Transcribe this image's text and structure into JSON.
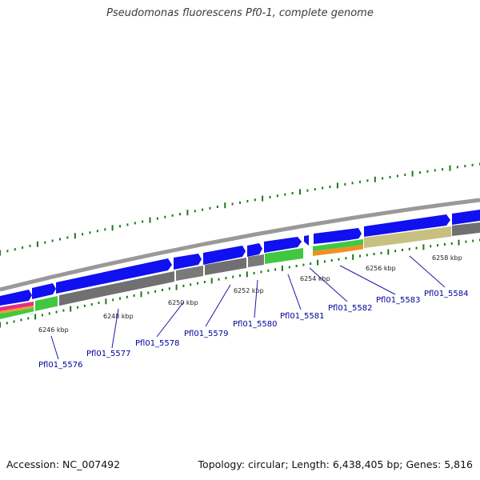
{
  "title": "Pseudomonas fluorescens Pf0-1, complete genome",
  "footer": {
    "accession_label": "Accession:",
    "accession": "NC_007492",
    "topology_label": "Topology:",
    "topology": "circular",
    "length_label": "Length:",
    "length": "6,438,405 bp",
    "genes_label": "Genes:",
    "genes": "5,816"
  },
  "colors": {
    "forward_cds": "#1010f0",
    "gray_feature": "#707070",
    "green_feature": "#40c840",
    "olive_feature": "#c8c080",
    "orange_feature": "#f09020",
    "tick": "#1a7a1a",
    "label": "#000099"
  },
  "kbp_ticks": [
    {
      "label": "6246 kbp"
    },
    {
      "label": "6248 kbp"
    },
    {
      "label": "6250 kbp"
    },
    {
      "label": "6252 kbp"
    },
    {
      "label": "6254 kbp"
    },
    {
      "label": "6256 kbp"
    },
    {
      "label": "6258 kbp"
    }
  ],
  "gene_labels": [
    {
      "name": "Pfl01_5576"
    },
    {
      "name": "Pfl01_5577"
    },
    {
      "name": "Pfl01_5578"
    },
    {
      "name": "Pfl01_5579"
    },
    {
      "name": "Pfl01_5580"
    },
    {
      "name": "Pfl01_5581"
    },
    {
      "name": "Pfl01_5582"
    },
    {
      "name": "Pfl01_5583"
    },
    {
      "name": "Pfl01_5584"
    }
  ]
}
